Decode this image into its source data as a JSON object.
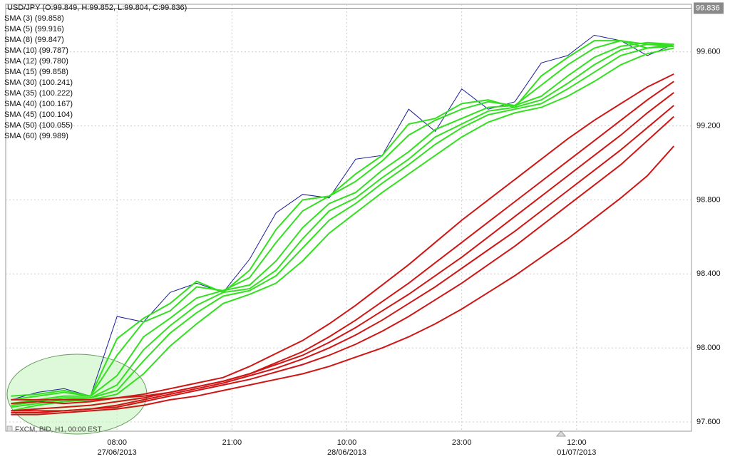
{
  "chart_data": {
    "type": "line",
    "title": "USD/JPY (O:99.849, H:99.852, L:99.804, C:99.836)",
    "footer": "FXCM, BID, H1, 00:00 EST",
    "last_price": 99.836,
    "x": [
      0,
      3,
      6,
      9,
      12,
      15,
      18,
      21,
      24,
      27,
      30,
      33,
      36,
      39,
      42,
      45,
      48,
      51,
      54,
      57,
      60,
      63,
      66,
      69,
      72,
      75
    ],
    "xlim": [
      -0.6,
      77
    ],
    "xticks": [
      {
        "value": 12,
        "label": "08:00",
        "date": "27/06/2013"
      },
      {
        "value": 25,
        "label": "21:00"
      },
      {
        "value": 38,
        "label": "10:00",
        "date": "28/06/2013"
      },
      {
        "value": 51,
        "label": "23:00"
      },
      {
        "value": 64,
        "label": "12:00",
        "date": "01/07/2013"
      }
    ],
    "ylim": [
      97.55,
      99.857
    ],
    "yticks": [
      {
        "value": 97.6,
        "label": "97.600"
      },
      {
        "value": 98.0,
        "label": "98.000"
      },
      {
        "value": 98.4,
        "label": "98.400"
      },
      {
        "value": 98.8,
        "label": "98.800"
      },
      {
        "value": 99.2,
        "label": "99.200"
      },
      {
        "value": 99.6,
        "label": "99.600"
      }
    ],
    "grid": true,
    "series": [
      {
        "color": "#1c1c9a",
        "values": [
          97.72,
          97.76,
          97.78,
          97.74,
          98.17,
          98.14,
          98.3,
          98.35,
          98.3,
          98.48,
          98.73,
          98.83,
          98.81,
          99.02,
          99.04,
          99.29,
          99.17,
          99.4,
          99.29,
          99.33,
          99.54,
          99.58,
          99.69,
          99.66,
          99.58,
          99.64
        ]
      },
      {
        "name": "SMA (3) (99.858)",
        "color": "#33e01f",
        "values": [
          97.74,
          97.75,
          97.77,
          97.74,
          98.05,
          98.16,
          98.24,
          98.36,
          98.3,
          98.42,
          98.64,
          98.8,
          98.82,
          98.94,
          99.04,
          99.21,
          99.24,
          99.32,
          99.34,
          99.3,
          99.47,
          99.57,
          99.66,
          99.66,
          99.62,
          99.63
        ]
      },
      {
        "name": "SMA (5) (99.916)",
        "color": "#33e01f",
        "values": [
          97.72,
          97.74,
          97.76,
          97.74,
          97.96,
          98.14,
          98.2,
          98.33,
          98.31,
          98.38,
          98.57,
          98.74,
          98.82,
          98.9,
          99.01,
          99.15,
          99.23,
          99.29,
          99.33,
          99.31,
          99.42,
          99.53,
          99.62,
          99.66,
          99.64,
          99.63
        ]
      },
      {
        "name": "SMA (8) (99.847)",
        "color": "#33e01f",
        "values": [
          97.7,
          97.72,
          97.74,
          97.74,
          97.85,
          98.06,
          98.16,
          98.27,
          98.31,
          98.34,
          98.47,
          98.65,
          98.78,
          98.84,
          98.96,
          99.06,
          99.18,
          99.24,
          99.3,
          99.31,
          99.36,
          99.47,
          99.57,
          99.63,
          99.65,
          99.64
        ]
      },
      {
        "name": "SMA (10) (99.787)",
        "color": "#33e01f",
        "values": [
          97.69,
          97.71,
          97.73,
          97.73,
          97.8,
          97.99,
          98.12,
          98.23,
          98.3,
          98.32,
          98.42,
          98.59,
          98.74,
          98.81,
          98.92,
          99.02,
          99.14,
          99.21,
          99.28,
          99.3,
          99.34,
          99.43,
          99.53,
          99.61,
          99.64,
          99.64
        ]
      },
      {
        "name": "SMA (12) (99.780)",
        "color": "#33e01f",
        "values": [
          97.68,
          97.7,
          97.72,
          97.73,
          97.77,
          97.93,
          98.08,
          98.19,
          98.28,
          98.31,
          98.39,
          98.54,
          98.69,
          98.78,
          98.89,
          98.99,
          99.1,
          99.19,
          99.26,
          99.29,
          99.32,
          99.4,
          99.49,
          99.58,
          99.62,
          99.64
        ]
      },
      {
        "name": "SMA (15) (99.858)",
        "color": "#33e01f",
        "values": [
          97.66,
          97.69,
          97.71,
          97.72,
          97.75,
          97.86,
          98.01,
          98.13,
          98.24,
          98.29,
          98.35,
          98.47,
          98.62,
          98.73,
          98.84,
          98.94,
          99.04,
          99.14,
          99.22,
          99.27,
          99.3,
          99.36,
          99.44,
          99.53,
          99.59,
          99.62
        ]
      },
      {
        "name": "SMA (30) (100.241)",
        "color": "#d01515",
        "values": [
          97.7,
          97.71,
          97.7,
          97.71,
          97.73,
          97.75,
          97.78,
          97.81,
          97.84,
          97.9,
          97.97,
          98.04,
          98.13,
          98.23,
          98.34,
          98.45,
          98.57,
          98.69,
          98.8,
          98.91,
          99.02,
          99.13,
          99.23,
          99.32,
          99.41,
          99.48
        ]
      },
      {
        "name": "SMA (35) (100.222)",
        "color": "#d01515",
        "values": [
          97.72,
          97.72,
          97.72,
          97.72,
          97.73,
          97.74,
          97.76,
          97.79,
          97.82,
          97.86,
          97.92,
          97.98,
          98.06,
          98.15,
          98.25,
          98.35,
          98.46,
          98.57,
          98.68,
          98.79,
          98.9,
          99.01,
          99.12,
          99.23,
          99.34,
          99.44
        ]
      },
      {
        "name": "SMA (40) (100.167)",
        "color": "#d01515",
        "values": [
          97.66,
          97.67,
          97.68,
          97.69,
          97.71,
          97.73,
          97.76,
          97.79,
          97.82,
          97.86,
          97.91,
          97.96,
          98.03,
          98.11,
          98.2,
          98.29,
          98.39,
          98.49,
          98.6,
          98.71,
          98.82,
          98.93,
          99.04,
          99.15,
          99.27,
          99.38
        ]
      },
      {
        "name": "SMA (45) (100.104)",
        "color": "#d01515",
        "values": [
          97.65,
          97.65,
          97.66,
          97.67,
          97.69,
          97.72,
          97.75,
          97.78,
          97.81,
          97.85,
          97.89,
          97.94,
          98.0,
          98.07,
          98.15,
          98.24,
          98.33,
          98.43,
          98.53,
          98.63,
          98.74,
          98.85,
          98.96,
          99.07,
          99.19,
          99.31
        ]
      },
      {
        "name": "SMA (50) (100.055)",
        "color": "#d01515",
        "values": [
          97.66,
          97.66,
          97.66,
          97.67,
          97.68,
          97.71,
          97.74,
          97.77,
          97.8,
          97.83,
          97.87,
          97.91,
          97.96,
          98.02,
          98.09,
          98.17,
          98.26,
          98.35,
          98.45,
          98.55,
          98.66,
          98.77,
          98.88,
          98.99,
          99.12,
          99.25
        ]
      },
      {
        "name": "SMA (60) (99.989)",
        "color": "#d01515",
        "values": [
          97.64,
          97.64,
          97.65,
          97.66,
          97.67,
          97.69,
          97.72,
          97.74,
          97.77,
          97.8,
          97.83,
          97.86,
          97.9,
          97.95,
          98.0,
          98.06,
          98.13,
          98.21,
          98.3,
          98.39,
          98.49,
          98.59,
          98.7,
          98.81,
          98.93,
          99.09
        ]
      }
    ]
  }
}
